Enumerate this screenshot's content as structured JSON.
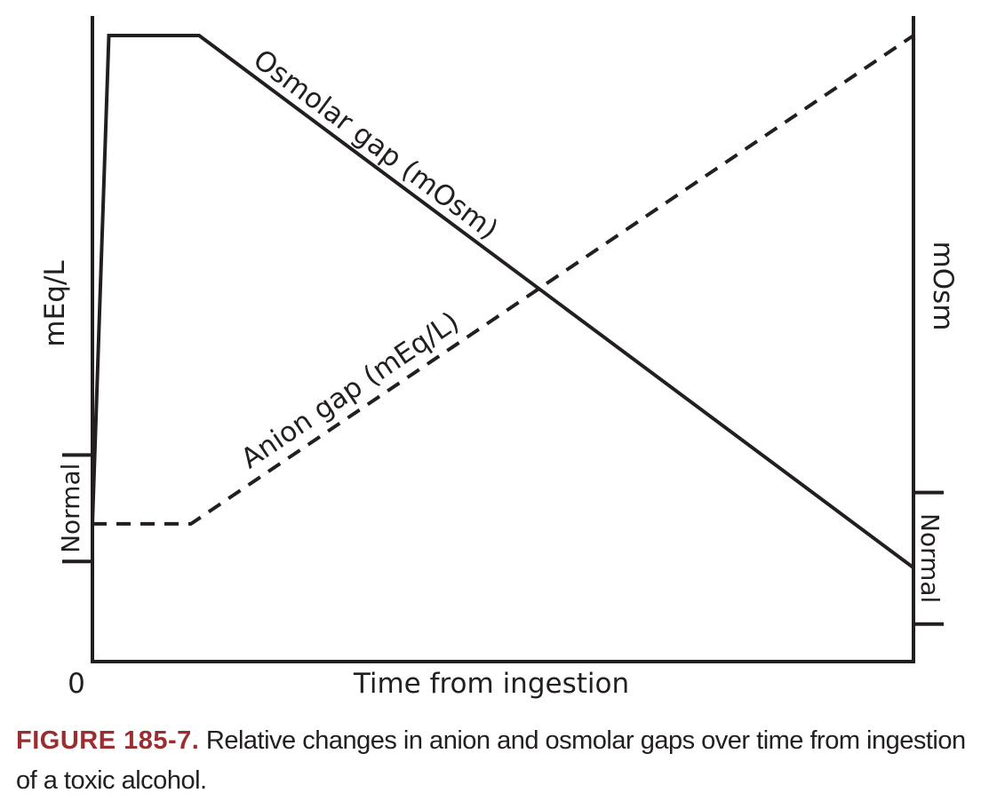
{
  "chart_data": {
    "type": "line",
    "title": "",
    "xlabel": "Time from ingestion",
    "x_tick_labels": [
      "0"
    ],
    "ylabel_left": "mEq/L",
    "ylabel_right": "mOsm",
    "xlim": [
      0,
      100
    ],
    "ylim": [
      0,
      100
    ],
    "normal_range_left": {
      "label": "Normal",
      "range": [
        16,
        33
      ]
    },
    "normal_range_right": {
      "label": "Normal",
      "range": [
        6,
        27
      ]
    },
    "series": [
      {
        "name": "Osmolar gap (mOsm)",
        "style": "solid",
        "axis": "right",
        "points": [
          [
            0,
            22
          ],
          [
            2,
            100
          ],
          [
            13,
            100
          ],
          [
            100,
            15
          ]
        ]
      },
      {
        "name": "Anion gap (mEq/L)",
        "style": "dashed",
        "axis": "left",
        "points": [
          [
            0,
            22
          ],
          [
            12,
            22
          ],
          [
            100,
            100
          ]
        ]
      }
    ],
    "grid": false,
    "legend": "none (series labeled inline)"
  },
  "caption": {
    "label": "FIGURE 185-7.",
    "text": "Relative changes in anion and osmolar gaps over time from ingestion of a toxic alcohol."
  },
  "colors": {
    "ink": "#231f20",
    "caption_label": "#9b2d31",
    "background": "#ffffff"
  }
}
